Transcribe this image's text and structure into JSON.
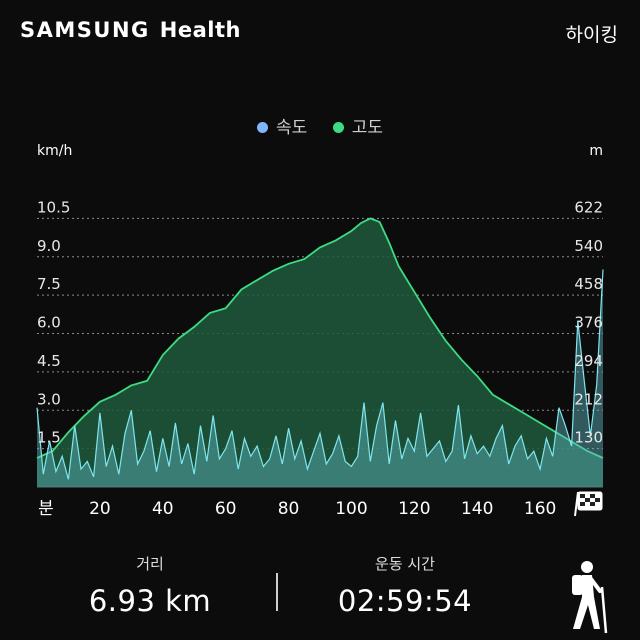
{
  "header": {
    "brand_main": "SAMSUNG",
    "brand_sub": "Health",
    "activity": "하이킹"
  },
  "legend": [
    {
      "label": "속도",
      "color": "#7fb6ff"
    },
    {
      "label": "고도",
      "color": "#3ddc84"
    }
  ],
  "chart_data": {
    "type": "area",
    "y_left_unit": "km/h",
    "y_right_unit": "m",
    "y_left_ticks": [
      "10.5",
      "9.0",
      "7.5",
      "6.0",
      "4.5",
      "3.0",
      "1.5"
    ],
    "y_right_ticks": [
      "622",
      "540",
      "458",
      "376",
      "294",
      "212",
      "130"
    ],
    "x_unit": "분",
    "x_ticks": [
      "20",
      "40",
      "60",
      "80",
      "100",
      "120",
      "140",
      "160"
    ],
    "xlim": [
      0,
      180
    ],
    "y_left_lim": [
      0,
      12
    ],
    "y_right_lim": [
      48,
      704
    ],
    "series": [
      {
        "name": "고도",
        "color": "#3ddc84",
        "x": [
          0,
          5,
          10,
          15,
          20,
          25,
          30,
          35,
          40,
          45,
          50,
          55,
          60,
          65,
          70,
          75,
          80,
          85,
          90,
          95,
          100,
          103,
          106,
          109,
          112,
          115,
          120,
          125,
          130,
          135,
          140,
          145,
          150,
          155,
          160,
          165,
          170,
          175,
          180
        ],
        "values": [
          110,
          125,
          165,
          200,
          230,
          245,
          265,
          275,
          330,
          365,
          390,
          420,
          430,
          470,
          490,
          510,
          525,
          535,
          560,
          575,
          595,
          612,
          622,
          614,
          570,
          520,
          465,
          410,
          360,
          320,
          285,
          245,
          225,
          205,
          185,
          165,
          145,
          125,
          110
        ]
      },
      {
        "name": "속도",
        "color": "#7fe6ee",
        "x": [
          0,
          2,
          4,
          6,
          8,
          10,
          12,
          14,
          16,
          18,
          20,
          22,
          24,
          26,
          28,
          30,
          32,
          34,
          36,
          38,
          40,
          42,
          44,
          46,
          48,
          50,
          52,
          54,
          56,
          58,
          60,
          62,
          64,
          66,
          68,
          70,
          72,
          74,
          76,
          78,
          80,
          82,
          84,
          86,
          88,
          90,
          92,
          94,
          96,
          98,
          100,
          102,
          104,
          106,
          108,
          110,
          112,
          114,
          116,
          118,
          120,
          122,
          124,
          126,
          128,
          130,
          132,
          134,
          136,
          138,
          140,
          142,
          144,
          146,
          148,
          150,
          152,
          154,
          156,
          158,
          160,
          162,
          164,
          166,
          168,
          170,
          172,
          174,
          176,
          178,
          180
        ],
        "values": [
          3.1,
          0.5,
          1.8,
          0.6,
          1.2,
          0.3,
          2.4,
          0.7,
          1.0,
          0.4,
          2.9,
          0.8,
          1.6,
          0.5,
          2.1,
          3.0,
          0.9,
          1.4,
          2.2,
          0.6,
          1.9,
          0.8,
          2.5,
          0.9,
          1.7,
          0.5,
          2.4,
          1.0,
          2.8,
          1.1,
          1.5,
          2.2,
          0.7,
          1.9,
          1.2,
          1.6,
          0.8,
          1.1,
          2.0,
          0.9,
          2.3,
          1.1,
          1.8,
          0.7,
          1.4,
          2.1,
          0.9,
          1.3,
          2.0,
          1.0,
          0.8,
          1.2,
          3.3,
          1.0,
          2.4,
          3.3,
          0.9,
          2.6,
          1.1,
          1.9,
          1.4,
          2.9,
          1.2,
          1.5,
          1.8,
          1.0,
          1.4,
          3.2,
          1.1,
          2.0,
          1.3,
          1.6,
          1.2,
          1.9,
          2.4,
          0.9,
          1.6,
          2.0,
          1.1,
          1.4,
          0.7,
          1.9,
          1.2,
          3.1,
          2.4,
          1.6,
          6.5,
          4.2,
          2.0,
          4.0,
          8.5
        ]
      }
    ]
  },
  "stats": {
    "distance_label": "거리",
    "distance_value": "6.93 km",
    "time_label": "운동 시간",
    "time_value": "02:59:54"
  }
}
